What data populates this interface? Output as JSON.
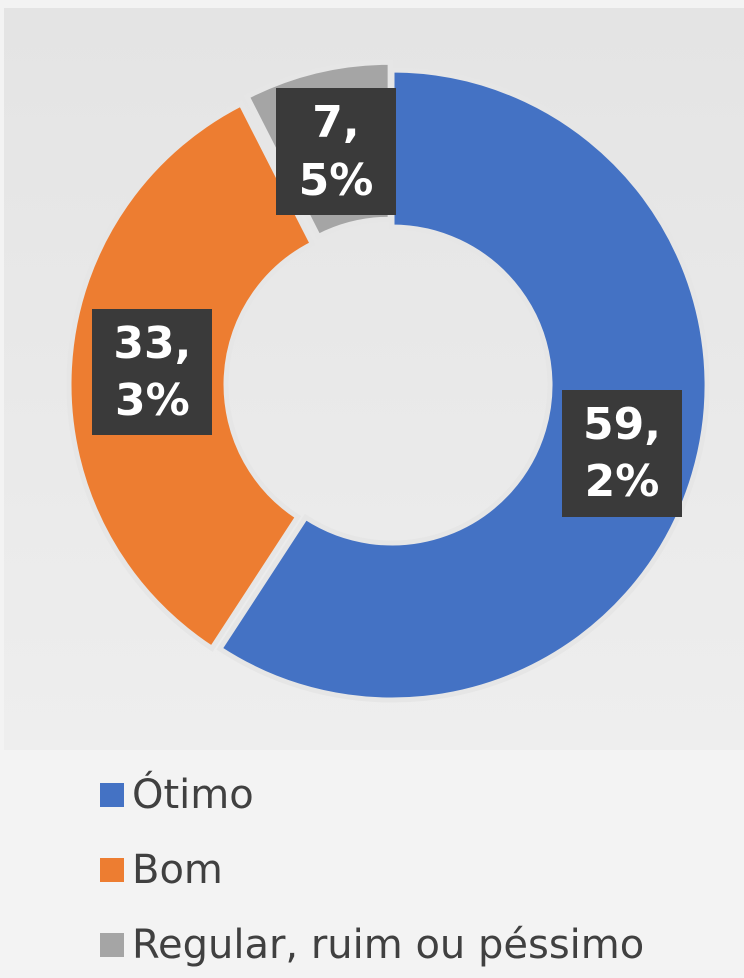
{
  "chart_data": {
    "type": "donut",
    "categories": [
      "Ótimo",
      "Bom",
      "Regular, ruim ou péssimo"
    ],
    "values": [
      59.2,
      33.3,
      7.5
    ],
    "value_labels": [
      "59,2%",
      "33,3%",
      "7,5%"
    ],
    "colors": [
      "#4472c4",
      "#ed7d31",
      "#a5a5a5"
    ],
    "legend": "bottom"
  }
}
